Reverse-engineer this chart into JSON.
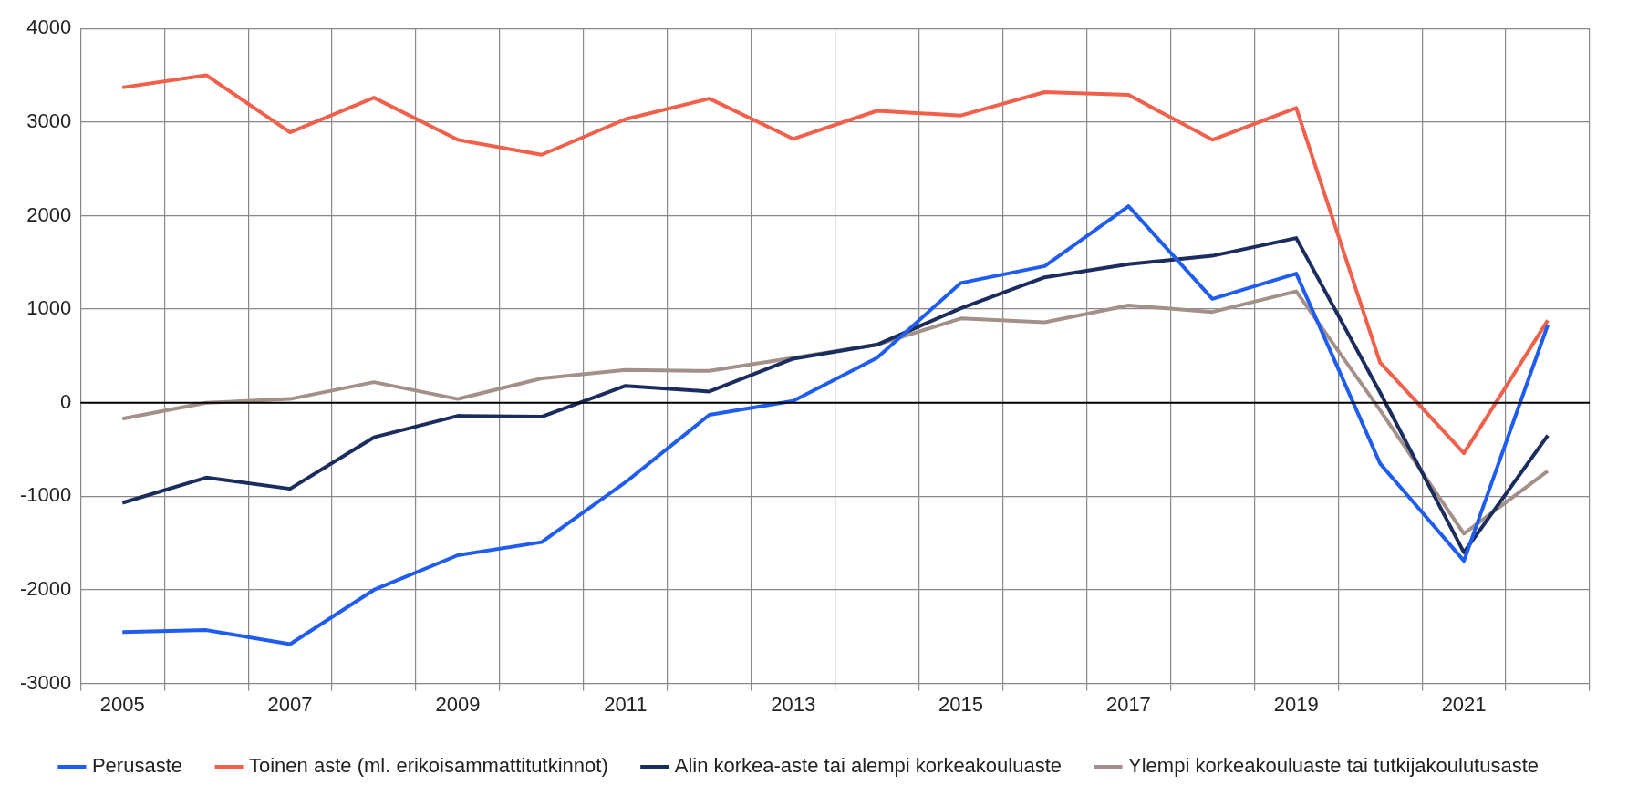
{
  "chart_data": {
    "type": "line",
    "categories": [
      "2005",
      null,
      "2007",
      null,
      "2009",
      null,
      "2011",
      null,
      "2013",
      null,
      "2015",
      null,
      "2017",
      null,
      "2019",
      null,
      "2021",
      null
    ],
    "series": [
      {
        "name": "Perusaste",
        "color": "#1f5cf0",
        "values": [
          -2450,
          -2430,
          -2580,
          -2000,
          -1630,
          -1490,
          -850,
          -130,
          20,
          480,
          1280,
          1460,
          2100,
          1110,
          1380,
          -650,
          -1690,
          830
        ]
      },
      {
        "name": "Toinen aste (ml. erikoisammattitutkinnot)",
        "color": "#f0604a",
        "values": [
          3370,
          3500,
          2890,
          3260,
          2810,
          2650,
          3030,
          3250,
          2820,
          3120,
          3070,
          3320,
          3290,
          2810,
          3150,
          430,
          -540,
          880
        ]
      },
      {
        "name": "Alin korkea-aste tai alempi korkeakouluaste",
        "color": "#1b2d5e",
        "values": [
          -1070,
          -800,
          -920,
          -370,
          -140,
          -150,
          180,
          120,
          470,
          620,
          1010,
          1340,
          1480,
          1570,
          1760,
          110,
          -1600,
          -350
        ]
      },
      {
        "name": "Ylempi korkeakouluaste tai tutkijakoulutusaste",
        "color": "#a39189",
        "values": [
          -170,
          0,
          40,
          220,
          40,
          260,
          350,
          340,
          480,
          620,
          900,
          860,
          1040,
          970,
          1190,
          -80,
          -1400,
          -730
        ]
      }
    ],
    "ylim": [
      -3000,
      4000
    ],
    "yticks": [
      -3000,
      -2000,
      -1000,
      0,
      1000,
      2000,
      3000,
      4000
    ],
    "ref_lines": [
      {
        "axis": "y",
        "value": 0,
        "color": "#000000"
      }
    ],
    "grid": true,
    "legend": "bottom",
    "line_style": "solid",
    "marker": "none"
  }
}
